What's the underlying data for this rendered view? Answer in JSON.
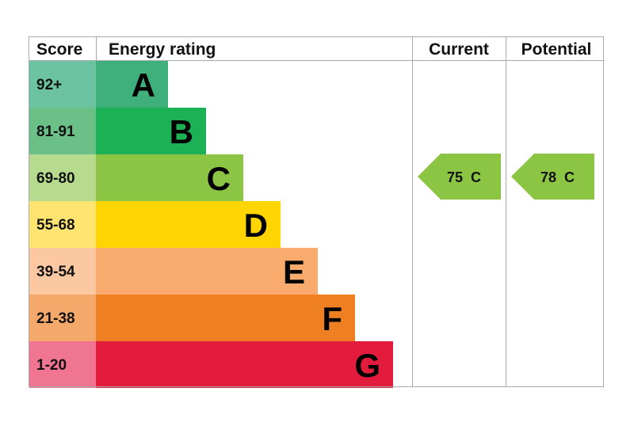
{
  "chart_data": {
    "type": "bar",
    "headers": {
      "score": "Score",
      "rating": "Energy rating",
      "current": "Current",
      "potential": "Potential"
    },
    "bands": [
      {
        "score": "92+",
        "letter": "A",
        "color": "#3fb07c",
        "score_color": "#6bc3a2"
      },
      {
        "score": "81-91",
        "letter": "B",
        "color": "#1db155",
        "score_color": "#6ac086"
      },
      {
        "score": "69-80",
        "letter": "C",
        "color": "#8cc443",
        "score_color": "#b7db8e"
      },
      {
        "score": "55-68",
        "letter": "D",
        "color": "#ffd500",
        "score_color": "#ffe471"
      },
      {
        "score": "39-54",
        "letter": "E",
        "color": "#f8ab6c",
        "score_color": "#fbc8a1"
      },
      {
        "score": "21-38",
        "letter": "F",
        "color": "#ef7f23",
        "score_color": "#f4a86a"
      },
      {
        "score": "1-20",
        "letter": "G",
        "color": "#e31c3d",
        "score_color": "#ef7590"
      }
    ],
    "current": {
      "value": 75,
      "letter": "C",
      "label": "75  C",
      "color": "#8cc443"
    },
    "potential": {
      "value": 78,
      "letter": "C",
      "label": "78  C",
      "color": "#8cc443"
    }
  }
}
